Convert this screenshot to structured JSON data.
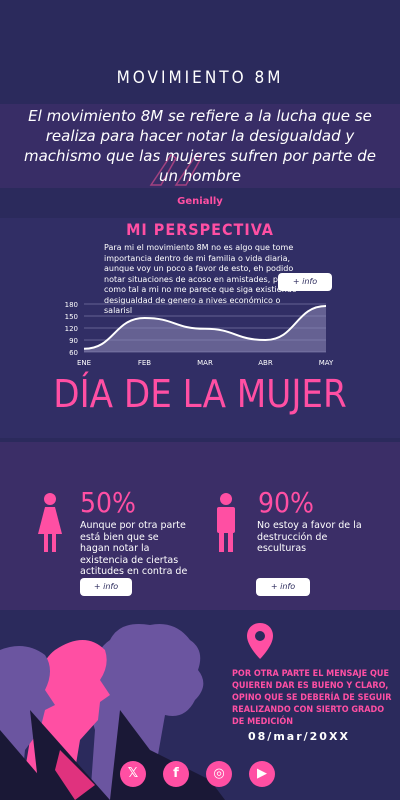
{
  "header": {
    "title": "MOVIMIENTO 8M"
  },
  "quote": {
    "text": "El movimiento 8M se refiere a la lucha que se realiza para hacer notar la desigualdad y machismo que las mujeres sufren por parte de un hombre"
  },
  "brand": {
    "label": "Genially"
  },
  "perspective": {
    "title": "MI PERSPECTIVA",
    "text": "Para mi el movimiento 8M no es algo que tome importancia dentro de mi familia o vida diaria, aunque voy un poco a favor de esto, eh podido notar situaciones de acoso en amistades, pero como tal a mi no me parece que siga existiendo desigualdad de genero a nives económico o salarisl",
    "button_label": "+ info"
  },
  "chart_data": {
    "type": "area",
    "categories": [
      "ENE",
      "FEB",
      "MAR",
      "ABR",
      "MAY"
    ],
    "values": [
      68,
      145,
      118,
      90,
      175
    ],
    "yticks": [
      60,
      90,
      120,
      150,
      180
    ],
    "ylim": [
      60,
      180
    ],
    "grid": true
  },
  "banner": {
    "title": "DÍA DE LA MUJER"
  },
  "stats": [
    {
      "value": "50%",
      "text": "Aunque por otra parte está bien que se hagan notar la existencia de ciertas actitudes en contra de",
      "button_label": "+ info",
      "icon": "woman-icon"
    },
    {
      "value": "90%",
      "text": "No estoy a favor de la destrucción de esculturas",
      "button_label": "+ info",
      "icon": "man-icon"
    }
  ],
  "footer": {
    "message": "POR OTRA PARTE EL MENSAJE QUE QUIEREN DAR ES BUENO Y CLARO, OPINO QUE SE DEBERÍA DE SEGUIR REALIZANDO CON SIERTO GRADO DE MEDICIÓN",
    "date": "08/mar/20XX",
    "social": [
      {
        "icon": "x-icon",
        "glyph": "𝕏"
      },
      {
        "icon": "facebook-icon",
        "glyph": "f"
      },
      {
        "icon": "instagram-icon",
        "glyph": "◎"
      },
      {
        "icon": "youtube-icon",
        "glyph": "▶"
      }
    ]
  },
  "colors": {
    "background": "#2b2a5c",
    "accent": "#ff4fa3",
    "band": "#3b2e67"
  }
}
